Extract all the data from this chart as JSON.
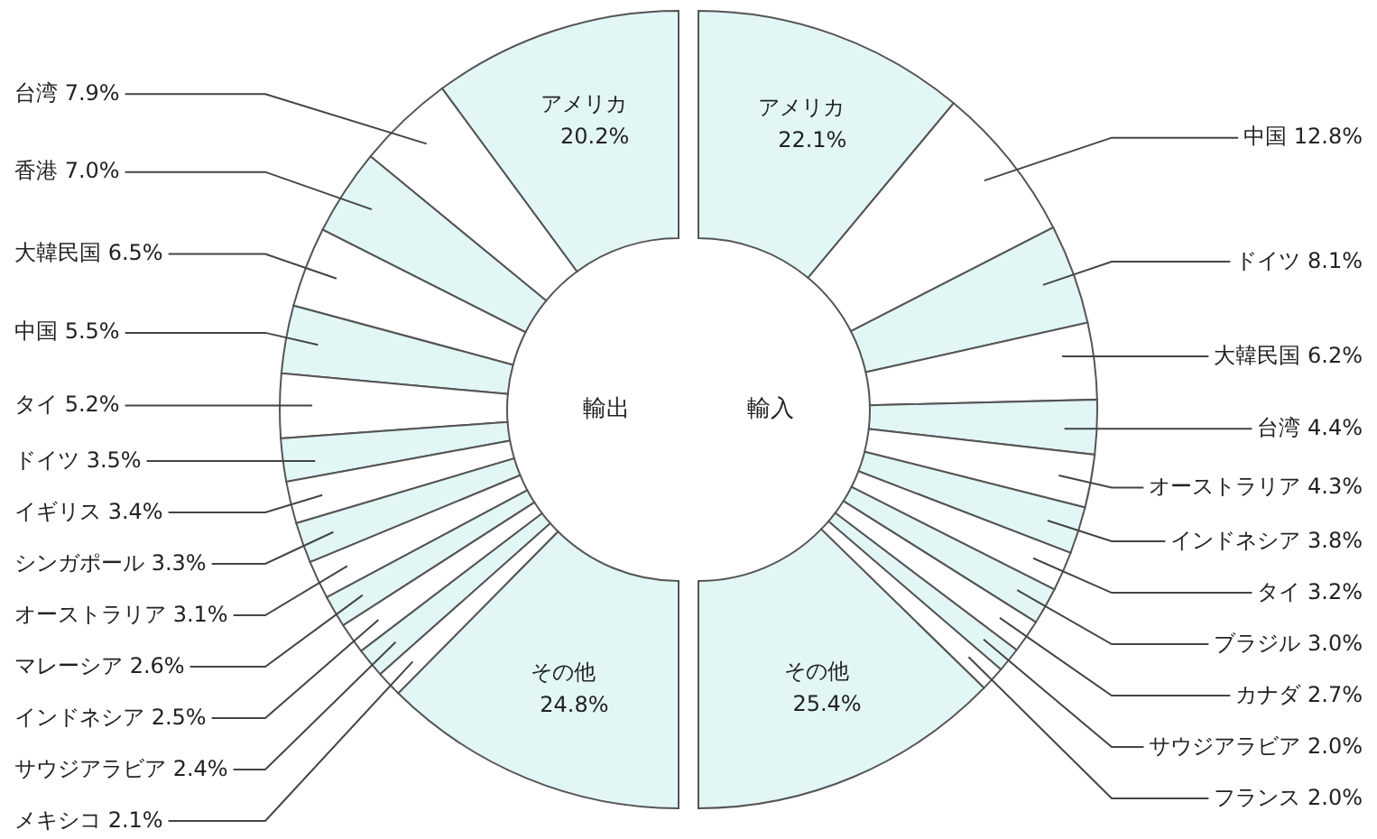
{
  "chart_data": [
    {
      "type": "donut",
      "title": "輸出",
      "categories": [
        "アメリカ",
        "台湾",
        "香港",
        "大韓民国",
        "中国",
        "タイ",
        "ドイツ",
        "イギリス",
        "シンガポール",
        "オーストラリア",
        "マレーシア",
        "インドネシア",
        "サウジアラビア",
        "メキシコ",
        "その他"
      ],
      "values": [
        20.2,
        7.9,
        7.0,
        6.5,
        5.5,
        5.2,
        3.5,
        3.4,
        3.3,
        3.1,
        2.6,
        2.5,
        2.4,
        2.1,
        24.8
      ],
      "value_labels": [
        "20.2%",
        "7.9%",
        "7.0%",
        "6.5%",
        "5.5%",
        "5.2%",
        "3.5%",
        "3.4%",
        "3.3%",
        "3.1%",
        "2.6%",
        "2.5%",
        "2.4%",
        "2.1%",
        "24.8%"
      ],
      "colors": [
        "#e2f6f6",
        "#ffffff",
        "#e2f6f6",
        "#ffffff",
        "#e2f6f6",
        "#ffffff",
        "#e2f6f6",
        "#ffffff",
        "#e2f6f6",
        "#ffffff",
        "#e2f6f6",
        "#ffffff",
        "#e2f6f6",
        "#ffffff",
        "#e2f6f6"
      ]
    },
    {
      "type": "donut",
      "title": "輸入",
      "categories": [
        "アメリカ",
        "中国",
        "ドイツ",
        "大韓民国",
        "台湾",
        "オーストラリア",
        "インドネシア",
        "タイ",
        "ブラジル",
        "カナダ",
        "サウジアラビア",
        "フランス",
        "その他"
      ],
      "values": [
        22.1,
        12.8,
        8.1,
        6.2,
        4.4,
        4.3,
        3.8,
        3.2,
        3.0,
        2.7,
        2.0,
        2.0,
        25.4
      ],
      "value_labels": [
        "22.1%",
        "12.8%",
        "8.1%",
        "6.2%",
        "4.4%",
        "4.3%",
        "3.8%",
        "3.2%",
        "3.0%",
        "2.7%",
        "2.0%",
        "2.0%",
        "25.4%"
      ],
      "colors": [
        "#e2f6f6",
        "#ffffff",
        "#e2f6f6",
        "#ffffff",
        "#e2f6f6",
        "#ffffff",
        "#e2f6f6",
        "#ffffff",
        "#e2f6f6",
        "#ffffff",
        "#e2f6f6",
        "#ffffff",
        "#e2f6f6"
      ]
    }
  ]
}
